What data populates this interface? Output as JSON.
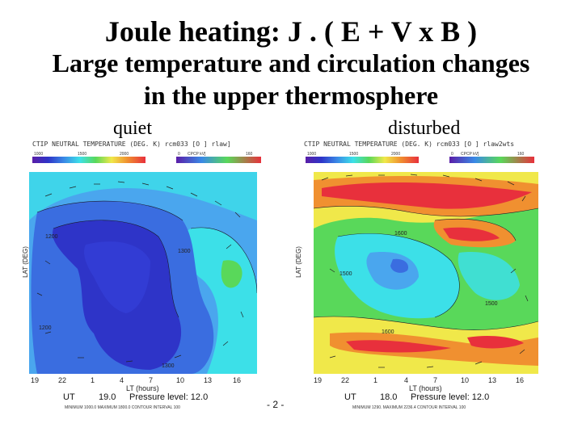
{
  "title": {
    "line1": "Joule heating: J . ( E + V x B )",
    "line2": "Large temperature and circulation changes",
    "line3": "in the upper thermosphere"
  },
  "left": {
    "label": "quiet",
    "header": "CTIP  NEUTRAL TEMPERATURE (DEG. K)  rcm033 [O ] rlaw]",
    "scale_ticks": [
      "1000",
      "1500",
      "2000",
      "0",
      "CPCP kV]",
      "160"
    ],
    "ylabel": "LAT (DEG)",
    "xlabel": "LT (hours)",
    "x_ticks": [
      "19",
      "22",
      "1",
      "4",
      "7",
      "10",
      "13",
      "16"
    ],
    "ut_label": "UT",
    "ut_value": "19.0",
    "pressure": "Pressure level:  12.0",
    "stats": "MINIMUM  1000.0  MAXIMUM  1800.0  CONTOUR INTERVAL  100"
  },
  "right": {
    "label": "disturbed",
    "header": "CTIP  NEUTRAL TEMPERATURE (DEG. K)  rcm033 [O ] rlaw2wts",
    "scale_ticks": [
      "1000",
      "1500",
      "2000",
      "0",
      "CPCP kV]",
      "160"
    ],
    "ylabel": "LAT (DEG)",
    "xlabel": "LT (hours)",
    "x_ticks": [
      "19",
      "22",
      "1",
      "4",
      "7",
      "10",
      "13",
      "16"
    ],
    "ut_label": "UT",
    "ut_value": "18.0",
    "pressure": "Pressure level:  12.0",
    "stats": "MINIMUM  1290.  MAXIMUM  2236.4  CONTOUR INTERVAL  100"
  },
  "page_number": "- 2 -",
  "colors": {
    "deep_blue": "#2e34c8",
    "blue": "#3a6de0",
    "light_blue": "#4aa6ee",
    "cyan": "#3ce0e8",
    "green": "#59d85a",
    "yellow": "#f0e84a",
    "orange": "#f09030",
    "red": "#e8303c"
  }
}
